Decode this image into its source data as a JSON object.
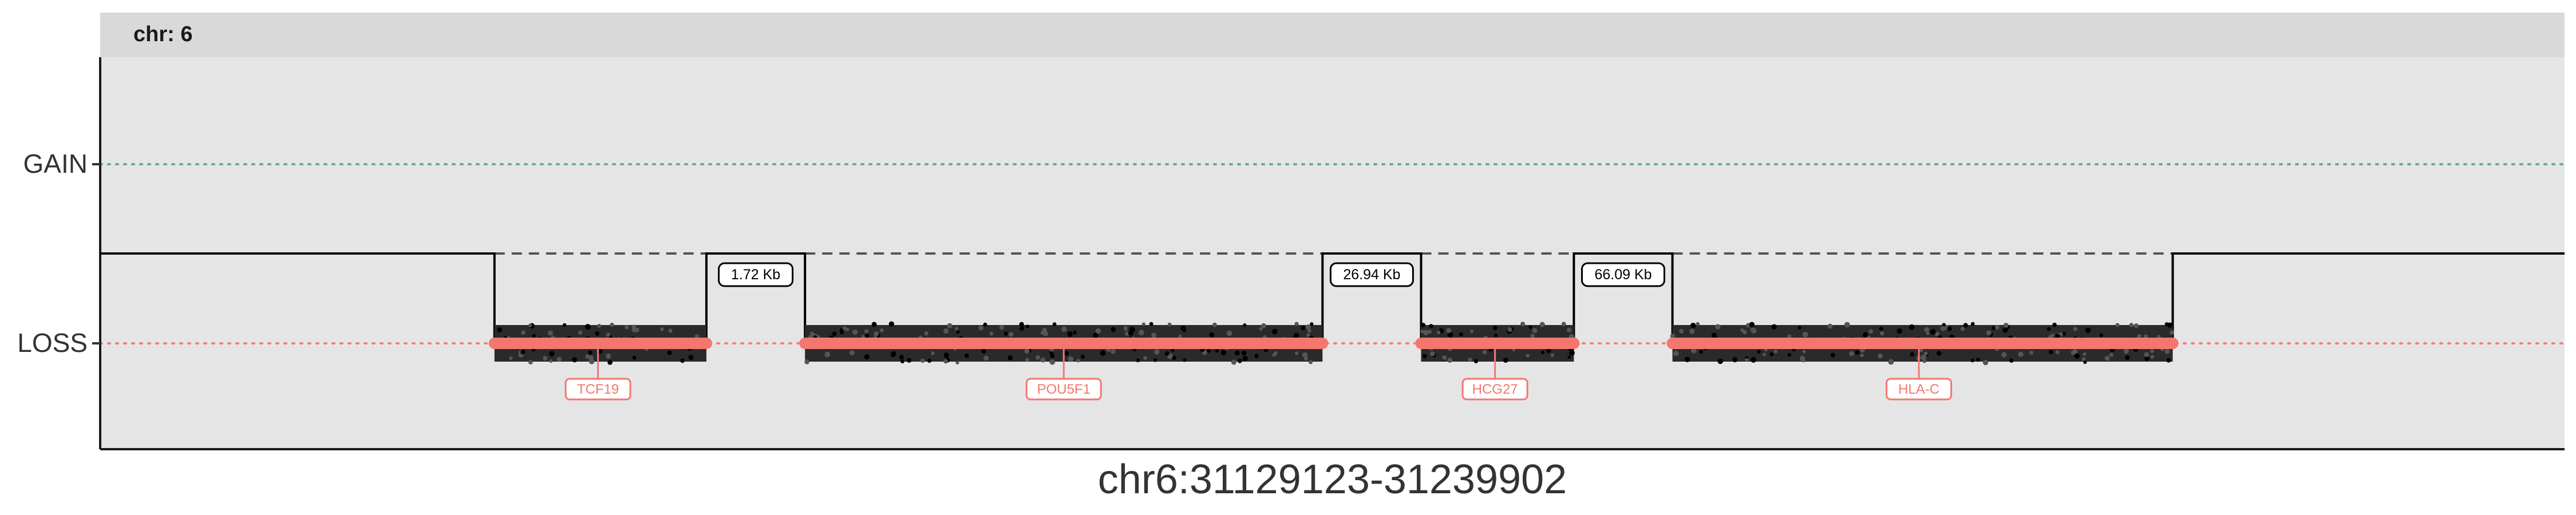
{
  "chart_data": {
    "type": "line",
    "facet_label": "chr: 6",
    "xlabel": "chr6:31129123-31239902",
    "y_categories": [
      "GAIN",
      "LOSS"
    ],
    "grid": false,
    "state_line": {
      "color": "#000000",
      "pre_level": "LOSS",
      "segments": [
        {
          "level": "normal",
          "x": [
            0,
            16
          ]
        },
        {
          "level": "LOSS",
          "x": [
            16,
            24.6
          ]
        },
        {
          "level": "normal",
          "x": [
            24.6,
            28.6
          ]
        },
        {
          "level": "LOSS",
          "x": [
            28.6,
            49.6
          ]
        },
        {
          "level": "normal",
          "x": [
            49.6,
            53.6
          ]
        },
        {
          "level": "LOSS",
          "x": [
            53.6,
            59.8
          ]
        },
        {
          "level": "normal",
          "x": [
            59.8,
            63.8
          ]
        },
        {
          "level": "LOSS",
          "x": [
            63.8,
            84.1
          ]
        },
        {
          "level": "normal",
          "x": [
            84.1,
            100
          ]
        }
      ]
    },
    "gap_labels": [
      {
        "label": "1.72 Kb",
        "x_start": 24.6,
        "x_end": 28.6
      },
      {
        "label": "26.94 Kb",
        "x_start": 49.6,
        "x_end": 53.6
      },
      {
        "label": "66.09 Kb",
        "x_start": 59.8,
        "x_end": 63.8
      }
    ],
    "genes": [
      {
        "name": "TCF19",
        "x_start": 16,
        "x_end": 24.6,
        "label_x": 20.2
      },
      {
        "name": "POU5F1",
        "x_start": 28.6,
        "x_end": 49.6,
        "label_x": 39.1
      },
      {
        "name": "HCG27",
        "x_start": 53.6,
        "x_end": 59.8,
        "label_x": 56.6
      },
      {
        "name": "HLA-C",
        "x_start": 63.8,
        "x_end": 84.1,
        "label_x": 73.8
      }
    ],
    "colors": {
      "panel": "#e5e5e5",
      "strip": "#d9d9d9",
      "gain_line": "#6aa6a4",
      "loss_line": "#f08080",
      "gene": "#f4776f",
      "points": "#111111"
    },
    "xlim": [
      0,
      100
    ]
  }
}
